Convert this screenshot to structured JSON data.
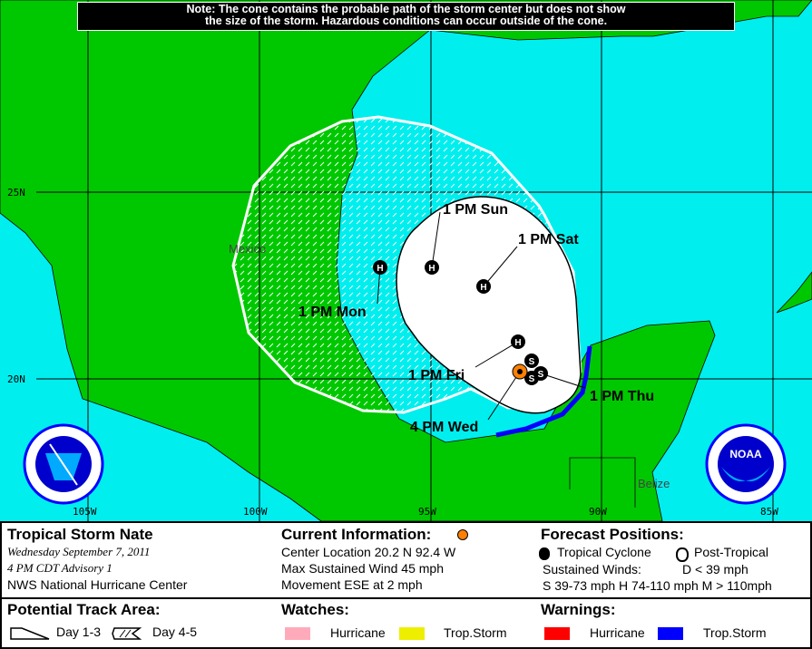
{
  "note": {
    "line1": "Note: The cone contains the probable path of the storm center but does not show",
    "line2": "the size of the storm. Hazardous conditions can occur outside of the cone."
  },
  "map": {
    "colors": {
      "land": "#00c800",
      "water": "#00eeee",
      "cone": "#ffffff",
      "warning_trop_storm": "#0000ff",
      "current_position": "#ff8000"
    },
    "lat_labels": [
      "25N",
      "20N"
    ],
    "lon_labels": [
      "105W",
      "100W",
      "95W",
      "90W",
      "85W"
    ],
    "place_labels": {
      "mexico": "Mexico",
      "belize": "Belize"
    },
    "track": [
      {
        "label": "4 PM Wed",
        "marker": "current"
      },
      {
        "label": "1 PM Thu",
        "marker": "S"
      },
      {
        "label": "1 PM Fri",
        "marker": "H"
      },
      {
        "label": "1 PM Sat",
        "marker": "H"
      },
      {
        "label": "1 PM Sun",
        "marker": "H"
      },
      {
        "label": "1 PM Mon",
        "marker": "H"
      }
    ],
    "extra_markers": [
      "S",
      "S"
    ],
    "logos": {
      "left": "NATIONAL WEATHER SERVICE",
      "right": "NOAA"
    }
  },
  "panel": {
    "storm_name": "Tropical Storm Nate",
    "date": "Wednesday September 7, 2011",
    "advisory": "4 PM CDT Advisory 1",
    "center": "NWS National Hurricane Center",
    "current_title": "Current Information:",
    "location": "Center Location 20.2 N  92.4 W",
    "wind": "Max Sustained Wind  45 mph",
    "movement": "Movement ESE at  2 mph",
    "forecast_title": "Forecast Positions:",
    "tropical": "Tropical Cyclone",
    "post_tropical": "Post-Tropical",
    "sustained": "Sustained Winds:",
    "d_scale": "D  < 39 mph",
    "scales": "S  39-73 mph  H  74-110 mph  M  > 110mph",
    "track_title": "Potential Track Area:",
    "day13": "Day 1-3",
    "day45": "Day 4-5",
    "watches_title": "Watches:",
    "watch_hurricane": "Hurricane",
    "watch_ts": "Trop.Storm",
    "warnings_title": "Warnings:",
    "warn_hurricane": "Hurricane",
    "warn_ts": "Trop.Storm",
    "colors": {
      "watch_hurricane": "#ffaabb",
      "watch_ts": "#eeee00",
      "warn_hurricane": "#ff0000",
      "warn_ts": "#0000ff"
    }
  }
}
